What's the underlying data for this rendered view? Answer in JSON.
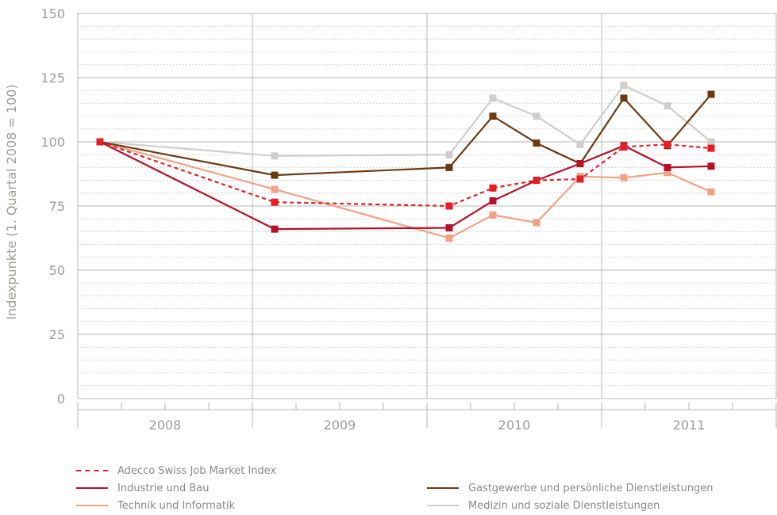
{
  "chart_data": {
    "type": "line",
    "ylabel": "Indexpunkte (1. Quartal 2008 = 100)",
    "ylim": [
      0,
      150
    ],
    "yticks": [
      0,
      25,
      50,
      75,
      100,
      125,
      150
    ],
    "years": [
      "2008",
      "2009",
      "2010",
      "2011"
    ],
    "quarters_per_year": 4,
    "grid": "horizontal dotted minor, solid at labeled ticks; vertical solid at year boundaries",
    "series": [
      {
        "name": "Adecco Swiss Job Market Index",
        "color": "#e31e24",
        "dash": true,
        "points": [
          {
            "q": "2008-Q1",
            "y": 100
          },
          {
            "q": "2009-Q1",
            "y": 76.5
          },
          {
            "q": "2010-Q1",
            "y": 75
          },
          {
            "q": "2010-Q2",
            "y": 82
          },
          {
            "q": "2010-Q3",
            "y": 85
          },
          {
            "q": "2010-Q4",
            "y": 85.5
          },
          {
            "q": "2011-Q1",
            "y": 98
          },
          {
            "q": "2011-Q2",
            "y": 99
          },
          {
            "q": "2011-Q3",
            "y": 97.5
          }
        ]
      },
      {
        "name": "Industrie und Bau",
        "color": "#b5112a",
        "dash": false,
        "points": [
          {
            "q": "2008-Q1",
            "y": 100
          },
          {
            "q": "2009-Q1",
            "y": 66
          },
          {
            "q": "2010-Q1",
            "y": 66.5
          },
          {
            "q": "2010-Q2",
            "y": 77
          },
          {
            "q": "2010-Q3",
            "y": 85
          },
          {
            "q": "2010-Q4",
            "y": 91.5
          },
          {
            "q": "2011-Q1",
            "y": 98.5
          },
          {
            "q": "2011-Q2",
            "y": 90
          },
          {
            "q": "2011-Q3",
            "y": 90.5
          }
        ]
      },
      {
        "name": "Technik und Informatik",
        "color": "#f2a184",
        "dash": false,
        "points": [
          {
            "q": "2008-Q1",
            "y": 100
          },
          {
            "q": "2009-Q1",
            "y": 81.5
          },
          {
            "q": "2010-Q1",
            "y": 62.5
          },
          {
            "q": "2010-Q2",
            "y": 71.5
          },
          {
            "q": "2010-Q3",
            "y": 68.5
          },
          {
            "q": "2010-Q4",
            "y": 86.5
          },
          {
            "q": "2011-Q1",
            "y": 86
          },
          {
            "q": "2011-Q2",
            "y": 88
          },
          {
            "q": "2011-Q3",
            "y": 80.5
          }
        ]
      },
      {
        "name": "Gastgewerbe und persönliche Dienstleistungen",
        "color": "#6b3a12",
        "dash": false,
        "points": [
          {
            "q": "2008-Q1",
            "y": 100
          },
          {
            "q": "2009-Q1",
            "y": 87
          },
          {
            "q": "2010-Q1",
            "y": 90
          },
          {
            "q": "2010-Q2",
            "y": 110
          },
          {
            "q": "2010-Q3",
            "y": 99.5
          },
          {
            "q": "2010-Q4",
            "y": 91.5
          },
          {
            "q": "2011-Q1",
            "y": 117
          },
          {
            "q": "2011-Q2",
            "y": 98.5
          },
          {
            "q": "2011-Q3",
            "y": 118.5
          }
        ]
      },
      {
        "name": "Medizin und soziale Dienstleistungen",
        "color": "#d1cdca",
        "dash": false,
        "points": [
          {
            "q": "2008-Q1",
            "y": 100
          },
          {
            "q": "2009-Q1",
            "y": 94.5
          },
          {
            "q": "2010-Q1",
            "y": 95
          },
          {
            "q": "2010-Q2",
            "y": 117
          },
          {
            "q": "2010-Q3",
            "y": 110
          },
          {
            "q": "2010-Q4",
            "y": 99
          },
          {
            "q": "2011-Q1",
            "y": 122
          },
          {
            "q": "2011-Q2",
            "y": 114
          },
          {
            "q": "2011-Q3",
            "y": 100
          }
        ]
      }
    ],
    "legend": [
      {
        "label": "Adecco Swiss Job Market Index",
        "series": 0,
        "position": "bottom-left"
      },
      {
        "label": "Industrie und Bau",
        "series": 1,
        "position": "bottom-left"
      },
      {
        "label": "Technik und Informatik",
        "series": 2,
        "position": "bottom-left"
      },
      {
        "label": "Gastgewerbe und persönliche Dienstleistungen",
        "series": 3,
        "position": "bottom-right"
      },
      {
        "label": "Medizin und soziale Dienstleistungen",
        "series": 4,
        "position": "bottom-right"
      }
    ]
  }
}
